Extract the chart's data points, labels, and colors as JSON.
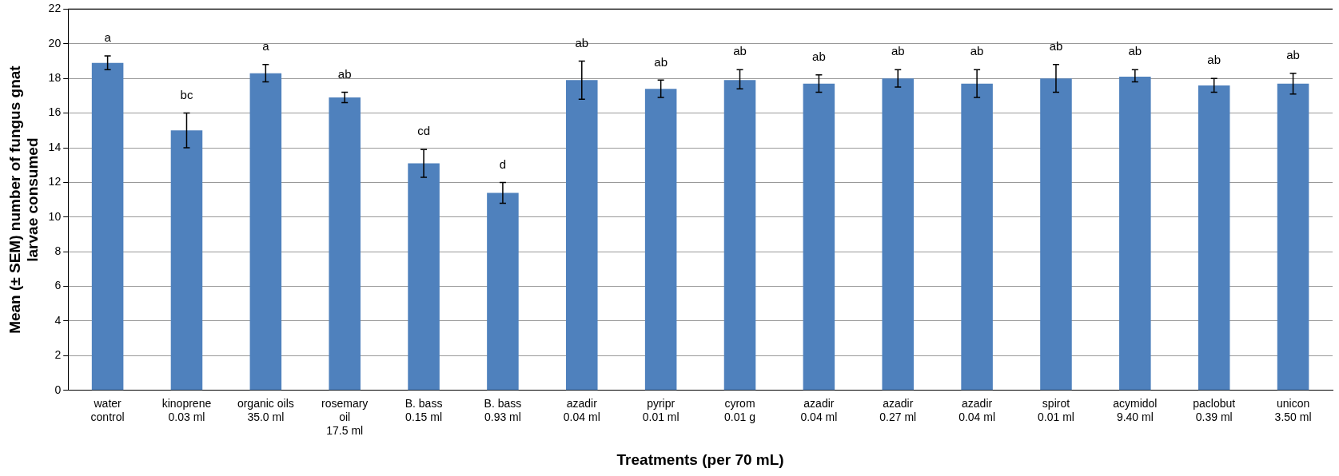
{
  "chart_data": {
    "type": "bar",
    "xlabel": "Treatments (per 70 mL)",
    "ylabel": "Mean (± SEM) number of fungus gnat\nlarvae consumed",
    "categories": [
      "water\ncontrol",
      "kinoprene\n0.03 ml",
      "organic oils\n35.0 ml",
      "rosemary\noil\n17.5 ml",
      "B. bass\n0.15 ml",
      "B. bass\n0.93 ml",
      "azadir\n0.04 ml",
      "pyripr\n0.01 ml",
      "cyrom\n0.01 g",
      "azadir\n0.04 ml",
      "azadir\n0.27 ml",
      "azadir\n0.04 ml",
      "spirot\n0.01 ml",
      "acymidol\n9.40 ml",
      "paclobut\n0.39 ml",
      "unicon\n3.50 ml"
    ],
    "values": [
      18.9,
      15.0,
      18.3,
      16.9,
      13.1,
      11.4,
      17.9,
      17.4,
      17.9,
      17.7,
      18.0,
      17.7,
      18.0,
      18.1,
      17.6,
      17.7
    ],
    "errors": [
      0.4,
      1.0,
      0.5,
      0.3,
      0.8,
      0.6,
      [
        16.8,
        19.0
      ],
      [
        16.9,
        17.9
      ],
      [
        17.4,
        18.5
      ],
      [
        17.2,
        18.2
      ],
      [
        17.5,
        18.5
      ],
      [
        16.9,
        18.5
      ],
      [
        17.2,
        18.8
      ],
      [
        17.8,
        18.5
      ],
      [
        17.2,
        18.0
      ],
      [
        17.1,
        18.3
      ]
    ],
    "color": "#4f81bd",
    "ylim": [
      0,
      22
    ],
    "yticks": [
      0,
      2,
      4,
      6,
      8,
      10,
      12,
      14,
      16,
      18,
      20,
      22
    ],
    "grid": "y",
    "annotations": [
      "a",
      "bc",
      "a",
      "ab",
      "cd",
      "d",
      "ab",
      "ab",
      "ab",
      "ab",
      "ab",
      "ab",
      "ab",
      "ab",
      "ab",
      "ab"
    ]
  }
}
